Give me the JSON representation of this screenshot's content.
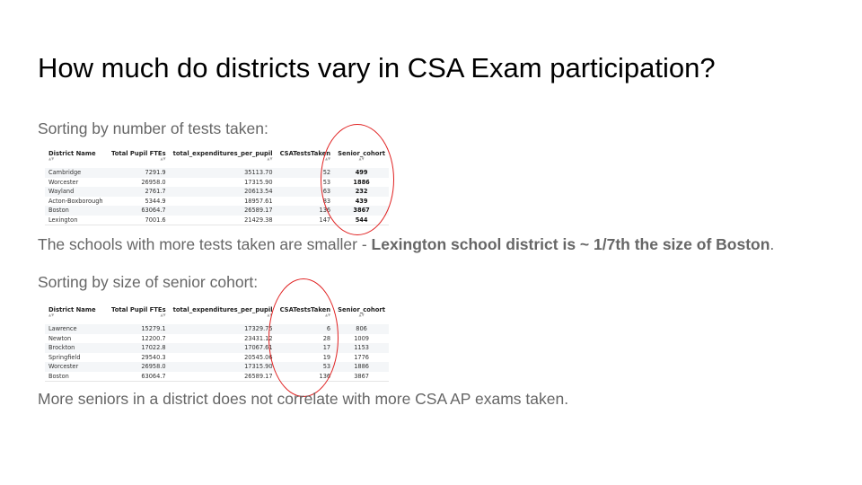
{
  "slide": {
    "title": "How much do districts vary in CSA Exam participation?",
    "section1_label": "Sorting by number of tests taken:",
    "section1_note_plain": "The schools with more tests taken are smaller - ",
    "section1_note_bold": "Lexington school district is ~ 1/7th the size of Boston",
    "section1_note_end": ".",
    "section2_label": "Sorting by size of senior cohort:",
    "section2_note": "More seniors in a district does not correlate with more CSA AP exams taken."
  },
  "table1": {
    "columns": [
      "District Name",
      "Total Pupil FTEs",
      "total_expenditures_per_pupil",
      "CSATestsTaken",
      "Senior_cohort"
    ],
    "rows": [
      [
        "Cambridge",
        "7291.9",
        "35113.70",
        "52",
        "499"
      ],
      [
        "Worcester",
        "26958.0",
        "17315.90",
        "53",
        "1886"
      ],
      [
        "Wayland",
        "2761.7",
        "20613.54",
        "63",
        "232"
      ],
      [
        "Acton-Boxborough",
        "5344.9",
        "18957.61",
        "83",
        "439"
      ],
      [
        "Boston",
        "63064.7",
        "26589.17",
        "136",
        "3867"
      ],
      [
        "Lexington",
        "7001.6",
        "21429.38",
        "147",
        "544"
      ]
    ]
  },
  "table2": {
    "columns": [
      "District Name",
      "Total Pupil FTEs",
      "total_expenditures_per_pupil",
      "CSATestsTaken",
      "Senior_cohort"
    ],
    "rows": [
      [
        "Lawrence",
        "15279.1",
        "17329.75",
        "6",
        "806"
      ],
      [
        "Newton",
        "12200.7",
        "23431.12",
        "28",
        "1009"
      ],
      [
        "Brockton",
        "17022.8",
        "17067.61",
        "17",
        "1153"
      ],
      [
        "Springfield",
        "29540.3",
        "20545.06",
        "19",
        "1776"
      ],
      [
        "Worcester",
        "26958.0",
        "17315.90",
        "53",
        "1886"
      ],
      [
        "Boston",
        "63064.7",
        "26589.17",
        "136",
        "3867"
      ]
    ]
  },
  "colors": {
    "body_text": "#666666",
    "title_text": "#000000",
    "highlight_circle": "#e02020"
  }
}
